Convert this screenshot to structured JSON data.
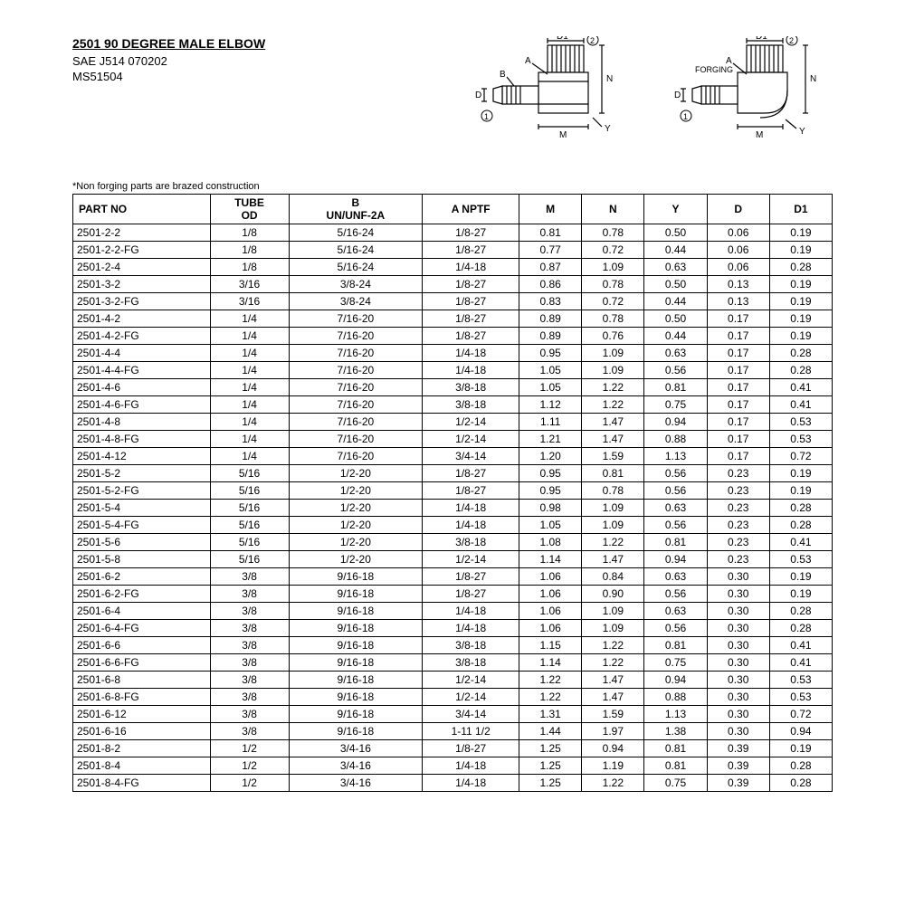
{
  "header": {
    "title": "2501 90 DEGREE MALE ELBOW",
    "subtitle1": "SAE J514 070202",
    "subtitle2": "MS51504"
  },
  "diagram_labels": {
    "d1": "D1",
    "circ2": "2",
    "a": "A",
    "n": "N",
    "b": "B",
    "d": "D",
    "circ1": "1",
    "m": "M",
    "y": "Y",
    "forging": "FORGING"
  },
  "note": "*Non forging parts are brazed construction",
  "table": {
    "columns": [
      "PART NO",
      "TUBE OD",
      "B UN/UNF-2A",
      "A NPTF",
      "M",
      "N",
      "Y",
      "D",
      "D1"
    ],
    "col_header_lines": {
      "1": [
        "TUBE",
        "OD"
      ],
      "2": [
        "B",
        "UN/UNF-2A"
      ]
    },
    "rows": [
      [
        "2501-2-2",
        "1/8",
        "5/16-24",
        "1/8-27",
        "0.81",
        "0.78",
        "0.50",
        "0.06",
        "0.19"
      ],
      [
        "2501-2-2-FG",
        "1/8",
        "5/16-24",
        "1/8-27",
        "0.77",
        "0.72",
        "0.44",
        "0.06",
        "0.19"
      ],
      [
        "2501-2-4",
        "1/8",
        "5/16-24",
        "1/4-18",
        "0.87",
        "1.09",
        "0.63",
        "0.06",
        "0.28"
      ],
      [
        "2501-3-2",
        "3/16",
        "3/8-24",
        "1/8-27",
        "0.86",
        "0.78",
        "0.50",
        "0.13",
        "0.19"
      ],
      [
        "2501-3-2-FG",
        "3/16",
        "3/8-24",
        "1/8-27",
        "0.83",
        "0.72",
        "0.44",
        "0.13",
        "0.19"
      ],
      [
        "2501-4-2",
        "1/4",
        "7/16-20",
        "1/8-27",
        "0.89",
        "0.78",
        "0.50",
        "0.17",
        "0.19"
      ],
      [
        "2501-4-2-FG",
        "1/4",
        "7/16-20",
        "1/8-27",
        "0.89",
        "0.76",
        "0.44",
        "0.17",
        "0.19"
      ],
      [
        "2501-4-4",
        "1/4",
        "7/16-20",
        "1/4-18",
        "0.95",
        "1.09",
        "0.63",
        "0.17",
        "0.28"
      ],
      [
        "2501-4-4-FG",
        "1/4",
        "7/16-20",
        "1/4-18",
        "1.05",
        "1.09",
        "0.56",
        "0.17",
        "0.28"
      ],
      [
        "2501-4-6",
        "1/4",
        "7/16-20",
        "3/8-18",
        "1.05",
        "1.22",
        "0.81",
        "0.17",
        "0.41"
      ],
      [
        "2501-4-6-FG",
        "1/4",
        "7/16-20",
        "3/8-18",
        "1.12",
        "1.22",
        "0.75",
        "0.17",
        "0.41"
      ],
      [
        "2501-4-8",
        "1/4",
        "7/16-20",
        "1/2-14",
        "1.11",
        "1.47",
        "0.94",
        "0.17",
        "0.53"
      ],
      [
        "2501-4-8-FG",
        "1/4",
        "7/16-20",
        "1/2-14",
        "1.21",
        "1.47",
        "0.88",
        "0.17",
        "0.53"
      ],
      [
        "2501-4-12",
        "1/4",
        "7/16-20",
        "3/4-14",
        "1.20",
        "1.59",
        "1.13",
        "0.17",
        "0.72"
      ],
      [
        "2501-5-2",
        "5/16",
        "1/2-20",
        "1/8-27",
        "0.95",
        "0.81",
        "0.56",
        "0.23",
        "0.19"
      ],
      [
        "2501-5-2-FG",
        "5/16",
        "1/2-20",
        "1/8-27",
        "0.95",
        "0.78",
        "0.56",
        "0.23",
        "0.19"
      ],
      [
        "2501-5-4",
        "5/16",
        "1/2-20",
        "1/4-18",
        "0.98",
        "1.09",
        "0.63",
        "0.23",
        "0.28"
      ],
      [
        "2501-5-4-FG",
        "5/16",
        "1/2-20",
        "1/4-18",
        "1.05",
        "1.09",
        "0.56",
        "0.23",
        "0.28"
      ],
      [
        "2501-5-6",
        "5/16",
        "1/2-20",
        "3/8-18",
        "1.08",
        "1.22",
        "0.81",
        "0.23",
        "0.41"
      ],
      [
        "2501-5-8",
        "5/16",
        "1/2-20",
        "1/2-14",
        "1.14",
        "1.47",
        "0.94",
        "0.23",
        "0.53"
      ],
      [
        "2501-6-2",
        "3/8",
        "9/16-18",
        "1/8-27",
        "1.06",
        "0.84",
        "0.63",
        "0.30",
        "0.19"
      ],
      [
        "2501-6-2-FG",
        "3/8",
        "9/16-18",
        "1/8-27",
        "1.06",
        "0.90",
        "0.56",
        "0.30",
        "0.19"
      ],
      [
        "2501-6-4",
        "3/8",
        "9/16-18",
        "1/4-18",
        "1.06",
        "1.09",
        "0.63",
        "0.30",
        "0.28"
      ],
      [
        "2501-6-4-FG",
        "3/8",
        "9/16-18",
        "1/4-18",
        "1.06",
        "1.09",
        "0.56",
        "0.30",
        "0.28"
      ],
      [
        "2501-6-6",
        "3/8",
        "9/16-18",
        "3/8-18",
        "1.15",
        "1.22",
        "0.81",
        "0.30",
        "0.41"
      ],
      [
        "2501-6-6-FG",
        "3/8",
        "9/16-18",
        "3/8-18",
        "1.14",
        "1.22",
        "0.75",
        "0.30",
        "0.41"
      ],
      [
        "2501-6-8",
        "3/8",
        "9/16-18",
        "1/2-14",
        "1.22",
        "1.47",
        "0.94",
        "0.30",
        "0.53"
      ],
      [
        "2501-6-8-FG",
        "3/8",
        "9/16-18",
        "1/2-14",
        "1.22",
        "1.47",
        "0.88",
        "0.30",
        "0.53"
      ],
      [
        "2501-6-12",
        "3/8",
        "9/16-18",
        "3/4-14",
        "1.31",
        "1.59",
        "1.13",
        "0.30",
        "0.72"
      ],
      [
        "2501-6-16",
        "3/8",
        "9/16-18",
        "1-11 1/2",
        "1.44",
        "1.97",
        "1.38",
        "0.30",
        "0.94"
      ],
      [
        "2501-8-2",
        "1/2",
        "3/4-16",
        "1/8-27",
        "1.25",
        "0.94",
        "0.81",
        "0.39",
        "0.19"
      ],
      [
        "2501-8-4",
        "1/2",
        "3/4-16",
        "1/4-18",
        "1.25",
        "1.19",
        "0.81",
        "0.39",
        "0.28"
      ],
      [
        "2501-8-4-FG",
        "1/2",
        "3/4-16",
        "1/4-18",
        "1.25",
        "1.22",
        "0.75",
        "0.39",
        "0.28"
      ]
    ]
  }
}
